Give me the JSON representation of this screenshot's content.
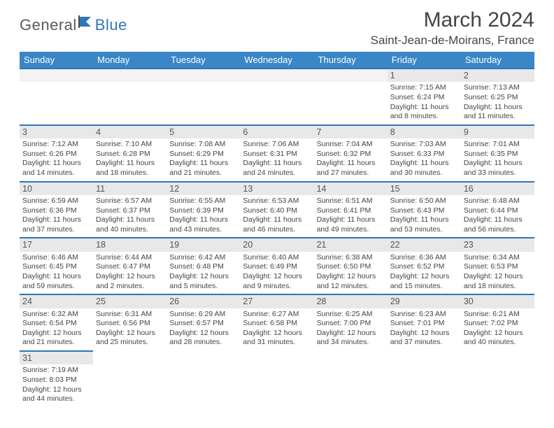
{
  "logo": {
    "part1": "General",
    "part2": "Blue"
  },
  "title": "March 2024",
  "location": "Saint-Jean-de-Moirans, France",
  "colors": {
    "header_bg": "#3b86c7",
    "header_text": "#ffffff",
    "daynum_bg": "#e8e8e8",
    "border": "#2e77b8",
    "text": "#444444",
    "logo_gray": "#5a5a5a",
    "logo_blue": "#2e77b8"
  },
  "weekdays": [
    "Sunday",
    "Monday",
    "Tuesday",
    "Wednesday",
    "Thursday",
    "Friday",
    "Saturday"
  ],
  "weeks": [
    [
      null,
      null,
      null,
      null,
      null,
      {
        "d": "1",
        "sr": "Sunrise: 7:15 AM",
        "ss": "Sunset: 6:24 PM",
        "dl": "Daylight: 11 hours and 8 minutes."
      },
      {
        "d": "2",
        "sr": "Sunrise: 7:13 AM",
        "ss": "Sunset: 6:25 PM",
        "dl": "Daylight: 11 hours and 11 minutes."
      }
    ],
    [
      {
        "d": "3",
        "sr": "Sunrise: 7:12 AM",
        "ss": "Sunset: 6:26 PM",
        "dl": "Daylight: 11 hours and 14 minutes."
      },
      {
        "d": "4",
        "sr": "Sunrise: 7:10 AM",
        "ss": "Sunset: 6:28 PM",
        "dl": "Daylight: 11 hours and 18 minutes."
      },
      {
        "d": "5",
        "sr": "Sunrise: 7:08 AM",
        "ss": "Sunset: 6:29 PM",
        "dl": "Daylight: 11 hours and 21 minutes."
      },
      {
        "d": "6",
        "sr": "Sunrise: 7:06 AM",
        "ss": "Sunset: 6:31 PM",
        "dl": "Daylight: 11 hours and 24 minutes."
      },
      {
        "d": "7",
        "sr": "Sunrise: 7:04 AM",
        "ss": "Sunset: 6:32 PM",
        "dl": "Daylight: 11 hours and 27 minutes."
      },
      {
        "d": "8",
        "sr": "Sunrise: 7:03 AM",
        "ss": "Sunset: 6:33 PM",
        "dl": "Daylight: 11 hours and 30 minutes."
      },
      {
        "d": "9",
        "sr": "Sunrise: 7:01 AM",
        "ss": "Sunset: 6:35 PM",
        "dl": "Daylight: 11 hours and 33 minutes."
      }
    ],
    [
      {
        "d": "10",
        "sr": "Sunrise: 6:59 AM",
        "ss": "Sunset: 6:36 PM",
        "dl": "Daylight: 11 hours and 37 minutes."
      },
      {
        "d": "11",
        "sr": "Sunrise: 6:57 AM",
        "ss": "Sunset: 6:37 PM",
        "dl": "Daylight: 11 hours and 40 minutes."
      },
      {
        "d": "12",
        "sr": "Sunrise: 6:55 AM",
        "ss": "Sunset: 6:39 PM",
        "dl": "Daylight: 11 hours and 43 minutes."
      },
      {
        "d": "13",
        "sr": "Sunrise: 6:53 AM",
        "ss": "Sunset: 6:40 PM",
        "dl": "Daylight: 11 hours and 46 minutes."
      },
      {
        "d": "14",
        "sr": "Sunrise: 6:51 AM",
        "ss": "Sunset: 6:41 PM",
        "dl": "Daylight: 11 hours and 49 minutes."
      },
      {
        "d": "15",
        "sr": "Sunrise: 6:50 AM",
        "ss": "Sunset: 6:43 PM",
        "dl": "Daylight: 11 hours and 53 minutes."
      },
      {
        "d": "16",
        "sr": "Sunrise: 6:48 AM",
        "ss": "Sunset: 6:44 PM",
        "dl": "Daylight: 11 hours and 56 minutes."
      }
    ],
    [
      {
        "d": "17",
        "sr": "Sunrise: 6:46 AM",
        "ss": "Sunset: 6:45 PM",
        "dl": "Daylight: 11 hours and 59 minutes."
      },
      {
        "d": "18",
        "sr": "Sunrise: 6:44 AM",
        "ss": "Sunset: 6:47 PM",
        "dl": "Daylight: 12 hours and 2 minutes."
      },
      {
        "d": "19",
        "sr": "Sunrise: 6:42 AM",
        "ss": "Sunset: 6:48 PM",
        "dl": "Daylight: 12 hours and 5 minutes."
      },
      {
        "d": "20",
        "sr": "Sunrise: 6:40 AM",
        "ss": "Sunset: 6:49 PM",
        "dl": "Daylight: 12 hours and 9 minutes."
      },
      {
        "d": "21",
        "sr": "Sunrise: 6:38 AM",
        "ss": "Sunset: 6:50 PM",
        "dl": "Daylight: 12 hours and 12 minutes."
      },
      {
        "d": "22",
        "sr": "Sunrise: 6:36 AM",
        "ss": "Sunset: 6:52 PM",
        "dl": "Daylight: 12 hours and 15 minutes."
      },
      {
        "d": "23",
        "sr": "Sunrise: 6:34 AM",
        "ss": "Sunset: 6:53 PM",
        "dl": "Daylight: 12 hours and 18 minutes."
      }
    ],
    [
      {
        "d": "24",
        "sr": "Sunrise: 6:32 AM",
        "ss": "Sunset: 6:54 PM",
        "dl": "Daylight: 12 hours and 21 minutes."
      },
      {
        "d": "25",
        "sr": "Sunrise: 6:31 AM",
        "ss": "Sunset: 6:56 PM",
        "dl": "Daylight: 12 hours and 25 minutes."
      },
      {
        "d": "26",
        "sr": "Sunrise: 6:29 AM",
        "ss": "Sunset: 6:57 PM",
        "dl": "Daylight: 12 hours and 28 minutes."
      },
      {
        "d": "27",
        "sr": "Sunrise: 6:27 AM",
        "ss": "Sunset: 6:58 PM",
        "dl": "Daylight: 12 hours and 31 minutes."
      },
      {
        "d": "28",
        "sr": "Sunrise: 6:25 AM",
        "ss": "Sunset: 7:00 PM",
        "dl": "Daylight: 12 hours and 34 minutes."
      },
      {
        "d": "29",
        "sr": "Sunrise: 6:23 AM",
        "ss": "Sunset: 7:01 PM",
        "dl": "Daylight: 12 hours and 37 minutes."
      },
      {
        "d": "30",
        "sr": "Sunrise: 6:21 AM",
        "ss": "Sunset: 7:02 PM",
        "dl": "Daylight: 12 hours and 40 minutes."
      }
    ],
    [
      {
        "d": "31",
        "sr": "Sunrise: 7:19 AM",
        "ss": "Sunset: 8:03 PM",
        "dl": "Daylight: 12 hours and 44 minutes."
      },
      null,
      null,
      null,
      null,
      null,
      null
    ]
  ]
}
